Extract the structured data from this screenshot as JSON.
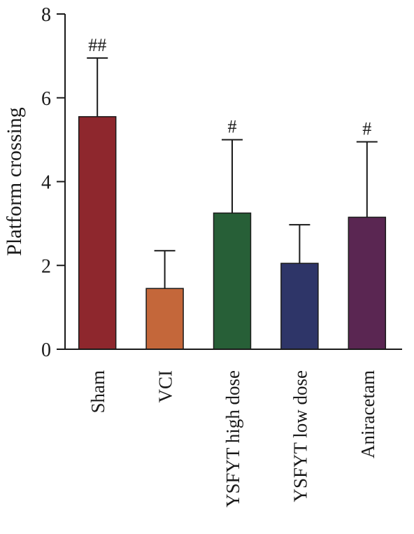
{
  "chart_data": {
    "type": "bar",
    "ylabel": "Platform crossing",
    "xlabel": "",
    "ylim": [
      0,
      8
    ],
    "yticks": [
      0,
      2,
      4,
      6,
      8
    ],
    "grid": false,
    "categories": [
      "Sham",
      "VCI",
      "YSFYT high dose",
      "YSFYT low dose",
      "Aniracetam"
    ],
    "values": [
      5.55,
      1.45,
      3.25,
      2.05,
      3.15
    ],
    "error_upper": [
      6.95,
      2.35,
      5.0,
      2.97,
      4.95
    ],
    "annotations": [
      "##",
      "",
      "#",
      "",
      "#"
    ],
    "colors": [
      "#8e272d",
      "#c4673a",
      "#275f37",
      "#2e3568",
      "#5a2652"
    ]
  }
}
